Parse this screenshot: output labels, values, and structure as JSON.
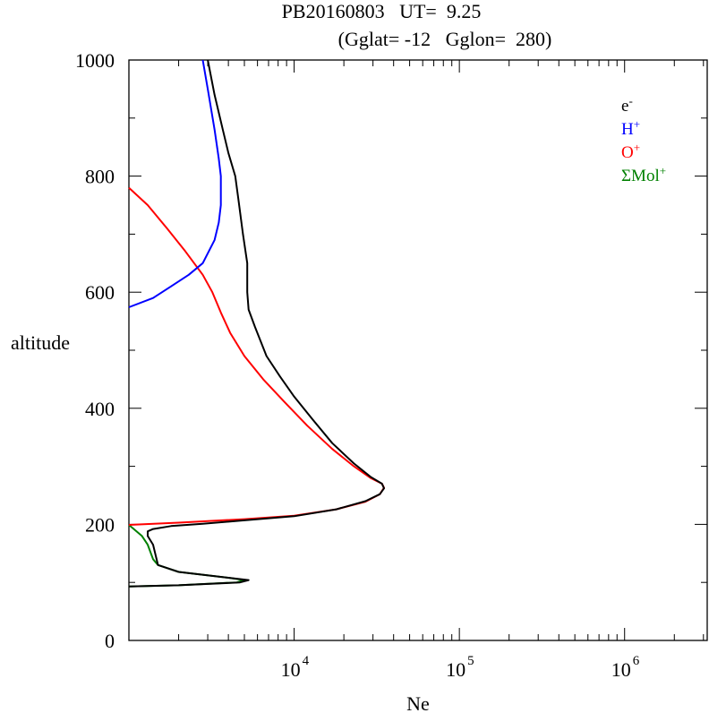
{
  "header": {
    "title_line1": "PB20160803   UT=  9.25",
    "title_line2": "(Gglat= -12   Gglon=  280)"
  },
  "chart_data": {
    "type": "line",
    "xlabel": "Ne",
    "ylabel": "altitude",
    "xscale": "log",
    "xlim": [
      1000,
      3162278
    ],
    "ylim": [
      0,
      1000
    ],
    "y_ticks": [
      0,
      200,
      400,
      600,
      800,
      1000
    ],
    "y_tick_labels": [
      "0",
      "200",
      "400",
      "600",
      "800",
      "1000"
    ],
    "x_major_ticks": [
      10000,
      100000,
      1000000
    ],
    "x_tick_labels": [
      {
        "base": "10",
        "exp": "4"
      },
      {
        "base": "10",
        "exp": "5"
      },
      {
        "base": "10",
        "exp": "6"
      }
    ],
    "grid": false,
    "legend_position": "top-right",
    "legend": [
      {
        "label": "e",
        "sup": "-",
        "color": "#000000"
      },
      {
        "label": "H",
        "sup": "+",
        "color": "#0000ff"
      },
      {
        "label": "O",
        "sup": "+",
        "color": "#ff0000"
      },
      {
        "label": "ΣMol",
        "sup": "+",
        "color": "#008000"
      }
    ],
    "series": [
      {
        "name": "ΣMol+",
        "color": "#008000",
        "points": [
          [
            1000,
            199
          ],
          [
            1200,
            180
          ],
          [
            1300,
            165
          ],
          [
            1400,
            140
          ],
          [
            1500,
            130
          ],
          [
            2000,
            118
          ],
          [
            4000,
            108
          ],
          [
            5000,
            104
          ],
          [
            4500,
            100
          ],
          [
            2000,
            95
          ],
          [
            1000,
            93
          ]
        ]
      },
      {
        "name": "O+",
        "color": "#ff0000",
        "points": [
          [
            1000,
            780
          ],
          [
            1300,
            750
          ],
          [
            1700,
            710
          ],
          [
            2200,
            670
          ],
          [
            2800,
            630
          ],
          [
            3200,
            600
          ],
          [
            3600,
            565
          ],
          [
            4100,
            530
          ],
          [
            5000,
            490
          ],
          [
            6500,
            450
          ],
          [
            8800,
            410
          ],
          [
            12000,
            370
          ],
          [
            17000,
            330
          ],
          [
            23000,
            300
          ],
          [
            29000,
            280
          ],
          [
            34000,
            270
          ],
          [
            35000,
            263
          ],
          [
            33000,
            252
          ],
          [
            27000,
            239
          ],
          [
            18000,
            226
          ],
          [
            10000,
            215
          ],
          [
            5000,
            209
          ],
          [
            2000,
            203
          ],
          [
            1000,
            199
          ]
        ]
      },
      {
        "name": "H+",
        "color": "#0000ff",
        "points": [
          [
            2800,
            1000
          ],
          [
            3000,
            950
          ],
          [
            3300,
            880
          ],
          [
            3500,
            830
          ],
          [
            3600,
            800
          ],
          [
            3600,
            750
          ],
          [
            3500,
            720
          ],
          [
            3300,
            690
          ],
          [
            2800,
            650
          ],
          [
            2300,
            630
          ],
          [
            1800,
            610
          ],
          [
            1400,
            590
          ],
          [
            1000,
            574
          ]
        ]
      },
      {
        "name": "e-",
        "color": "#000000",
        "points": [
          [
            3000,
            1000
          ],
          [
            3300,
            940
          ],
          [
            3700,
            880
          ],
          [
            4000,
            840
          ],
          [
            4400,
            800
          ],
          [
            4600,
            760
          ],
          [
            4900,
            700
          ],
          [
            5200,
            650
          ],
          [
            5200,
            600
          ],
          [
            5300,
            570
          ],
          [
            5800,
            540
          ],
          [
            6800,
            490
          ],
          [
            8200,
            455
          ],
          [
            10000,
            420
          ],
          [
            13000,
            380
          ],
          [
            17000,
            340
          ],
          [
            23000,
            305
          ],
          [
            29000,
            282
          ],
          [
            34000,
            270
          ],
          [
            35000,
            262
          ],
          [
            33000,
            252
          ],
          [
            27000,
            240
          ],
          [
            18000,
            226
          ],
          [
            10000,
            214
          ],
          [
            5000,
            207
          ],
          [
            2800,
            201
          ],
          [
            1800,
            197
          ],
          [
            1400,
            192
          ],
          [
            1300,
            188
          ],
          [
            1300,
            180
          ],
          [
            1400,
            165
          ],
          [
            1500,
            130
          ],
          [
            2000,
            118
          ],
          [
            4000,
            108
          ],
          [
            5300,
            104
          ],
          [
            4700,
            100
          ],
          [
            2000,
            95
          ],
          [
            1000,
            93
          ]
        ]
      }
    ]
  }
}
